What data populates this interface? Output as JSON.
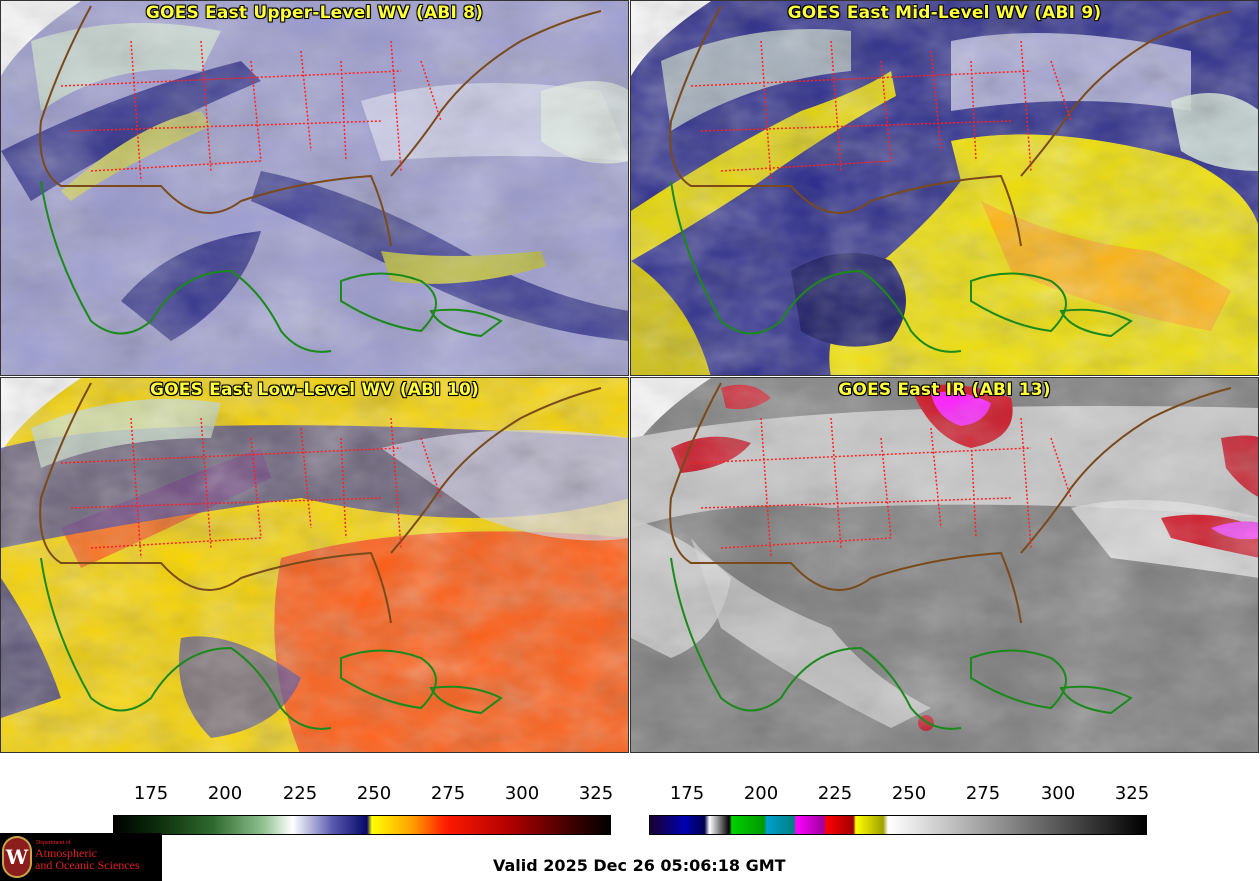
{
  "panels": [
    {
      "title": "GOES East Upper-Level WV (ABI 8)",
      "scheme": "wv_upper"
    },
    {
      "title": "GOES East Mid-Level WV (ABI 9)",
      "scheme": "wv_mid"
    },
    {
      "title": "GOES East Low-Level WV (ABI 10)",
      "scheme": "wv_low"
    },
    {
      "title": "GOES East IR (ABI 13)",
      "scheme": "ir"
    }
  ],
  "colorbars": {
    "wv": {
      "ticks": [
        "175",
        "200",
        "225",
        "250",
        "275",
        "300",
        "325"
      ]
    },
    "ir": {
      "ticks": [
        "175",
        "200",
        "225",
        "250",
        "275",
        "300",
        "325"
      ]
    }
  },
  "valid_time": "Valid 2025 Dec 26 05:06:18 GMT",
  "logo": {
    "department": "Department of",
    "line1": "Atmospheric",
    "line2": "and Oceanic Sciences",
    "initial": "W"
  },
  "colors": {
    "title_yellow": "#ffff3a",
    "state_border": "#ff2020",
    "coastline": "#1a8a1a",
    "country_border": "#7a4a1a"
  }
}
